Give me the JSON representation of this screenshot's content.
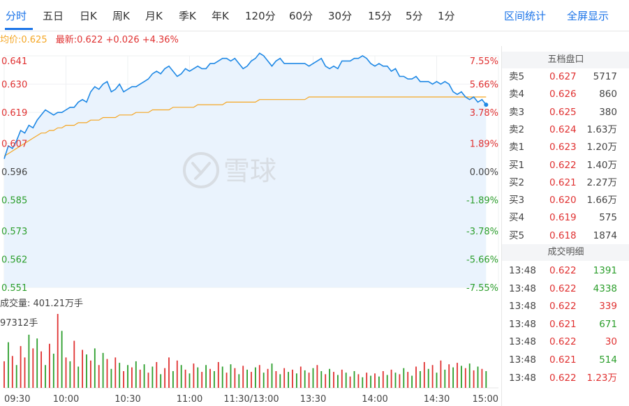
{
  "toolbar": {
    "tabs": [
      "分时",
      "五日",
      "日K",
      "周K",
      "月K",
      "季K",
      "年K",
      "120分",
      "60分",
      "30分",
      "15分",
      "5分",
      "1分"
    ],
    "actions": [
      "区间统计",
      "全屏显示"
    ]
  },
  "legend": {
    "avg_label": "均价:0.625",
    "latest_label": "最新:0.622 +0.026 +4.36%"
  },
  "chart_data": {
    "type": "line",
    "title": "",
    "prev_close": 0.596,
    "y_ticks": [
      "0.641",
      "0.630",
      "0.619",
      "0.607",
      "0.596",
      "0.585",
      "0.573",
      "0.562",
      "0.551"
    ],
    "pct_ticks": [
      "7.55%",
      "5.66%",
      "3.78%",
      "1.89%",
      "0.00%",
      "-1.89%",
      "-3.78%",
      "-5.66%",
      "-7.55%"
    ],
    "x_ticks": [
      "09:30",
      "10:00",
      "10:30",
      "11:00",
      "11:30/13:00",
      "13:30",
      "14:00",
      "14:30",
      "15:00"
    ],
    "ylim": [
      0.551,
      0.641
    ],
    "series": [
      {
        "values": [
          0.601,
          0.606,
          0.605,
          0.608,
          0.612,
          0.611,
          0.614,
          0.613,
          0.616,
          0.618,
          0.62,
          0.619,
          0.618,
          0.619,
          0.619,
          0.62,
          0.621,
          0.621,
          0.623,
          0.624,
          0.623,
          0.627,
          0.629,
          0.628,
          0.63,
          0.631,
          0.627,
          0.628,
          0.63,
          0.627,
          0.628,
          0.629,
          0.629,
          0.63,
          0.631,
          0.632,
          0.634,
          0.635,
          0.634,
          0.636,
          0.637,
          0.635,
          0.633,
          0.634,
          0.636,
          0.635,
          0.636,
          0.637,
          0.636,
          0.636,
          0.638,
          0.638,
          0.639,
          0.64,
          0.64,
          0.639,
          0.64,
          0.638,
          0.636,
          0.637,
          0.639,
          0.64,
          0.642,
          0.641,
          0.639,
          0.637,
          0.639,
          0.64,
          0.638,
          0.638,
          0.638,
          0.638,
          0.638,
          0.638,
          0.637,
          0.638,
          0.639,
          0.64,
          0.637,
          0.636,
          0.637,
          0.636,
          0.639,
          0.639,
          0.639,
          0.64,
          0.64,
          0.641,
          0.64,
          0.638,
          0.637,
          0.638,
          0.637,
          0.637,
          0.635,
          0.636,
          0.633,
          0.633,
          0.632,
          0.632,
          0.633,
          0.631,
          0.631,
          0.631,
          0.63,
          0.631,
          0.63,
          0.631,
          0.63,
          0.627,
          0.626,
          0.627,
          0.625,
          0.624,
          0.625,
          0.623,
          0.624,
          0.622
        ]
      },
      {
        "values": [
          0.602,
          0.603,
          0.604,
          0.605,
          0.606,
          0.607,
          0.608,
          0.609,
          0.61,
          0.611,
          0.611,
          0.612,
          0.612,
          0.613,
          0.613,
          0.614,
          0.614,
          0.614,
          0.615,
          0.615,
          0.615,
          0.616,
          0.616,
          0.616,
          0.617,
          0.617,
          0.617,
          0.617,
          0.618,
          0.618,
          0.618,
          0.618,
          0.619,
          0.619,
          0.619,
          0.619,
          0.62,
          0.62,
          0.62,
          0.62,
          0.62,
          0.621,
          0.621,
          0.621,
          0.621,
          0.621,
          0.621,
          0.622,
          0.622,
          0.622,
          0.622,
          0.622,
          0.622,
          0.622,
          0.623,
          0.623,
          0.623,
          0.623,
          0.623,
          0.623,
          0.623,
          0.623,
          0.624,
          0.624,
          0.624,
          0.624,
          0.624,
          0.624,
          0.624,
          0.624,
          0.624,
          0.624,
          0.624,
          0.624,
          0.625,
          0.625,
          0.625,
          0.625,
          0.625,
          0.625,
          0.625,
          0.625,
          0.625,
          0.625,
          0.625,
          0.625,
          0.625,
          0.625,
          0.625,
          0.625,
          0.625,
          0.625,
          0.625,
          0.625,
          0.625,
          0.625,
          0.625,
          0.625,
          0.625,
          0.625,
          0.625,
          0.625,
          0.625,
          0.625,
          0.625,
          0.625,
          0.625,
          0.625,
          0.625,
          0.625,
          0.625,
          0.625,
          0.625,
          0.625,
          0.625,
          0.625,
          0.625,
          0.625
        ]
      }
    ],
    "volume": {
      "label": "成交量: 401.21万手",
      "max_label": "97312手",
      "max": 97312,
      "bars": [
        {
          "v": 35000,
          "up": true
        },
        {
          "v": 60000,
          "up": false
        },
        {
          "v": 42000,
          "up": true
        },
        {
          "v": 30000,
          "up": false
        },
        {
          "v": 55000,
          "up": true
        },
        {
          "v": 40000,
          "up": true
        },
        {
          "v": 70000,
          "up": false
        },
        {
          "v": 52000,
          "up": true
        },
        {
          "v": 65000,
          "up": false
        },
        {
          "v": 48000,
          "up": true
        },
        {
          "v": 30000,
          "up": false
        },
        {
          "v": 58000,
          "up": true
        },
        {
          "v": 45000,
          "up": false
        },
        {
          "v": 97312,
          "up": true
        },
        {
          "v": 75000,
          "up": false
        },
        {
          "v": 40000,
          "up": true
        },
        {
          "v": 35000,
          "up": false
        },
        {
          "v": 62000,
          "up": true
        },
        {
          "v": 28000,
          "up": false
        },
        {
          "v": 50000,
          "up": true
        },
        {
          "v": 44000,
          "up": false
        },
        {
          "v": 36000,
          "up": true
        },
        {
          "v": 52000,
          "up": false
        },
        {
          "v": 30000,
          "up": true
        },
        {
          "v": 46000,
          "up": false
        },
        {
          "v": 38000,
          "up": true
        },
        {
          "v": 25000,
          "up": false
        },
        {
          "v": 40000,
          "up": true
        },
        {
          "v": 33000,
          "up": false
        },
        {
          "v": 22000,
          "up": true
        },
        {
          "v": 30000,
          "up": false
        },
        {
          "v": 27000,
          "up": true
        },
        {
          "v": 35000,
          "up": false
        },
        {
          "v": 24000,
          "up": true
        },
        {
          "v": 31000,
          "up": false
        },
        {
          "v": 20000,
          "up": true
        },
        {
          "v": 28000,
          "up": false
        },
        {
          "v": 34000,
          "up": true
        },
        {
          "v": 18000,
          "up": false
        },
        {
          "v": 26000,
          "up": true
        },
        {
          "v": 40000,
          "up": true
        },
        {
          "v": 22000,
          "up": false
        },
        {
          "v": 36000,
          "up": true
        },
        {
          "v": 30000,
          "up": false
        },
        {
          "v": 24000,
          "up": true
        },
        {
          "v": 19000,
          "up": false
        },
        {
          "v": 32000,
          "up": true
        },
        {
          "v": 27000,
          "up": false
        },
        {
          "v": 21000,
          "up": true
        },
        {
          "v": 30000,
          "up": false
        },
        {
          "v": 25000,
          "up": true
        },
        {
          "v": 22000,
          "up": false
        },
        {
          "v": 34000,
          "up": true
        },
        {
          "v": 28000,
          "up": false
        },
        {
          "v": 20000,
          "up": true
        },
        {
          "v": 31000,
          "up": false
        },
        {
          "v": 26000,
          "up": true
        },
        {
          "v": 18000,
          "up": false
        },
        {
          "v": 29000,
          "up": true
        },
        {
          "v": 24000,
          "up": false
        },
        {
          "v": 21000,
          "up": true
        },
        {
          "v": 27000,
          "up": false
        },
        {
          "v": 30000,
          "up": true
        },
        {
          "v": 20000,
          "up": false
        },
        {
          "v": 25000,
          "up": true
        },
        {
          "v": 32000,
          "up": false
        },
        {
          "v": 22000,
          "up": true
        },
        {
          "v": 18000,
          "up": false
        },
        {
          "v": 26000,
          "up": true
        },
        {
          "v": 21000,
          "up": false
        },
        {
          "v": 24000,
          "up": true
        },
        {
          "v": 19000,
          "up": false
        },
        {
          "v": 28000,
          "up": true
        },
        {
          "v": 23000,
          "up": false
        },
        {
          "v": 20000,
          "up": true
        },
        {
          "v": 26000,
          "up": false
        },
        {
          "v": 30000,
          "up": true
        },
        {
          "v": 22000,
          "up": false
        },
        {
          "v": 18000,
          "up": true
        },
        {
          "v": 25000,
          "up": false
        },
        {
          "v": 21000,
          "up": true
        },
        {
          "v": 17000,
          "up": false
        },
        {
          "v": 24000,
          "up": true
        },
        {
          "v": 20000,
          "up": false
        },
        {
          "v": 15000,
          "up": true
        },
        {
          "v": 22000,
          "up": false
        },
        {
          "v": 18000,
          "up": true
        },
        {
          "v": 14000,
          "up": false
        },
        {
          "v": 20000,
          "up": true
        },
        {
          "v": 16000,
          "up": false
        },
        {
          "v": 19000,
          "up": true
        },
        {
          "v": 15000,
          "up": false
        },
        {
          "v": 22000,
          "up": true
        },
        {
          "v": 17000,
          "up": false
        },
        {
          "v": 24000,
          "up": true
        },
        {
          "v": 20000,
          "up": false
        },
        {
          "v": 18000,
          "up": true
        },
        {
          "v": 26000,
          "up": false
        },
        {
          "v": 21000,
          "up": true
        },
        {
          "v": 16000,
          "up": false
        },
        {
          "v": 28000,
          "up": true
        },
        {
          "v": 22000,
          "up": false
        },
        {
          "v": 34000,
          "up": true
        },
        {
          "v": 25000,
          "up": false
        },
        {
          "v": 30000,
          "up": true
        },
        {
          "v": 20000,
          "up": false
        },
        {
          "v": 36000,
          "up": true
        },
        {
          "v": 24000,
          "up": false
        },
        {
          "v": 31000,
          "up": true
        },
        {
          "v": 27000,
          "up": false
        },
        {
          "v": 33000,
          "up": true
        },
        {
          "v": 29000,
          "up": false
        },
        {
          "v": 26000,
          "up": true
        },
        {
          "v": 32000,
          "up": false
        },
        {
          "v": 23000,
          "up": true
        },
        {
          "v": 28000,
          "up": false
        },
        {
          "v": 25000,
          "up": true
        },
        {
          "v": 22000,
          "up": false
        }
      ]
    }
  },
  "orderbook": {
    "title": "五档盘口",
    "rows": [
      {
        "label": "卖5",
        "price": "0.627",
        "vol": "5717"
      },
      {
        "label": "卖4",
        "price": "0.626",
        "vol": "860"
      },
      {
        "label": "卖3",
        "price": "0.625",
        "vol": "380"
      },
      {
        "label": "卖2",
        "price": "0.624",
        "vol": "1.63万"
      },
      {
        "label": "卖1",
        "price": "0.623",
        "vol": "1.20万"
      },
      {
        "label": "买1",
        "price": "0.622",
        "vol": "1.40万"
      },
      {
        "label": "买2",
        "price": "0.621",
        "vol": "2.27万"
      },
      {
        "label": "买3",
        "price": "0.620",
        "vol": "1.66万"
      },
      {
        "label": "买4",
        "price": "0.619",
        "vol": "575"
      },
      {
        "label": "买5",
        "price": "0.618",
        "vol": "1874"
      }
    ]
  },
  "trades": {
    "title": "成交明细",
    "rows": [
      {
        "time": "13:48",
        "price": "0.622",
        "vol": "1391",
        "side": "down"
      },
      {
        "time": "13:48",
        "price": "0.622",
        "vol": "4338",
        "side": "down"
      },
      {
        "time": "13:48",
        "price": "0.622",
        "vol": "339",
        "side": "up"
      },
      {
        "time": "13:48",
        "price": "0.621",
        "vol": "671",
        "side": "down"
      },
      {
        "time": "13:48",
        "price": "0.622",
        "vol": "30",
        "side": "up"
      },
      {
        "time": "13:48",
        "price": "0.621",
        "vol": "514",
        "side": "down"
      },
      {
        "time": "13:48",
        "price": "0.622",
        "vol": "1.23万",
        "side": "up"
      }
    ]
  },
  "watermark": {
    "text": "雪球"
  },
  "colors": {
    "accent": "#1a73e8",
    "up": "#e03131",
    "down": "#2b9e2b",
    "avg": "#f5a623",
    "price_line": "#1e88e5",
    "fill": "#eaf3fd"
  }
}
